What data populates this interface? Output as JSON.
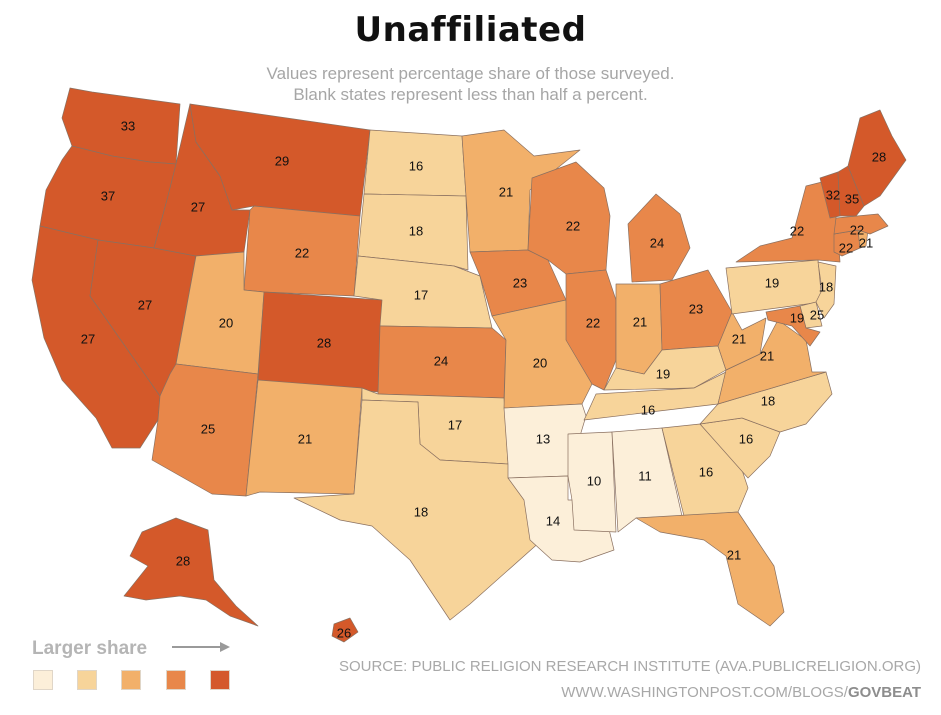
{
  "title": "Unaffiliated",
  "subtitle_line1": "Values represent percentage share of those surveyed.",
  "subtitle_line2": "Blank states represent less than half a percent.",
  "legend": {
    "title": "Larger share",
    "colors": [
      "#fcefd9",
      "#f7d49a",
      "#f2b06a",
      "#e8874a",
      "#d4592a"
    ]
  },
  "source": "SOURCE: PUBLIC RELIGION RESEARCH INSTITUTE (AVA.PUBLICRELIGION.ORG)",
  "url_prefix": "WWW.WASHINGTONPOST.COM/BLOGS/",
  "url_brand": "GOVBEAT",
  "states": {
    "WA": "33",
    "OR": "37",
    "CA": "27",
    "NV": "27",
    "ID": "27",
    "MT": "29",
    "WY": "22",
    "UT": "20",
    "AZ": "25",
    "CO": "28",
    "NM": "21",
    "ND": "16",
    "SD": "18",
    "NE": "17",
    "KS": "24",
    "OK": "17",
    "TX": "18",
    "MN": "21",
    "IA": "23",
    "MO": "20",
    "AR": "13",
    "LA": "14",
    "WI": "22",
    "IL": "22",
    "MI": "24",
    "IN": "21",
    "OH": "23",
    "KY": "19",
    "TN": "16",
    "MS": "10",
    "AL": "11",
    "GA": "16",
    "FL": "21",
    "SC": "16",
    "NC": "18",
    "VA": "21",
    "WV": "21",
    "PA": "19",
    "NY": "22",
    "NJ": "18",
    "DE": "19",
    "MD": "25",
    "CT": "22",
    "RI": "21",
    "MA": "22",
    "VT": "32",
    "NH": "35",
    "ME": "28",
    "AK": "28",
    "HI": "26"
  }
}
